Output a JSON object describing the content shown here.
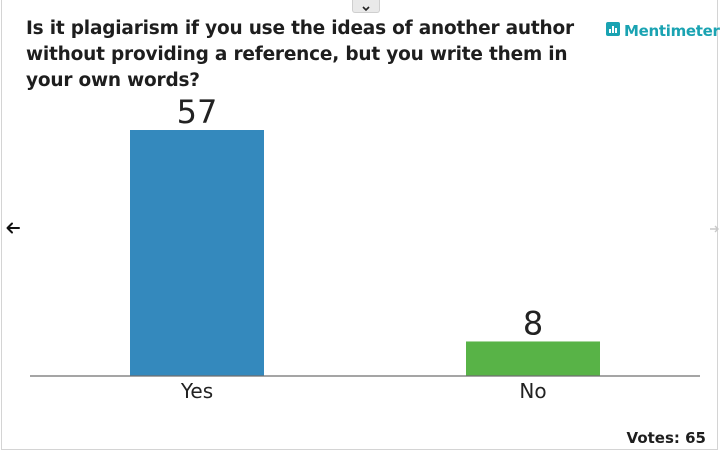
{
  "question": "Is it plagiarism if you use the ideas of another author without providing a reference, but you write them in your own words?",
  "brand": {
    "name": "Mentimeter",
    "color": "#1aa3b2"
  },
  "icons": {
    "collapse": "chevron-down-icon",
    "prev": "arrow-left-icon",
    "next": "arrow-right-icon",
    "brand": "bar-chart-logo-icon"
  },
  "votes_label": "Votes: 65",
  "chart_data": {
    "type": "bar",
    "categories": [
      "Yes",
      "No"
    ],
    "values": [
      57,
      8
    ],
    "colors": [
      "#3489bd",
      "#58b347"
    ],
    "ylim": [
      0,
      57
    ],
    "grid": false
  }
}
